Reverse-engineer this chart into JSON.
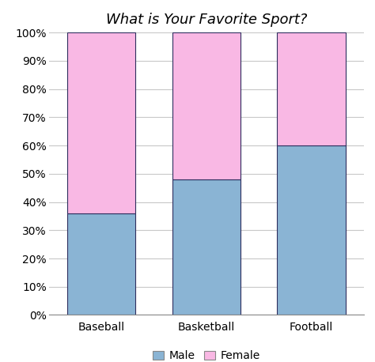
{
  "title": "What is Your Favorite Sport?",
  "categories": [
    "Baseball",
    "Basketball",
    "Football"
  ],
  "male_values": [
    0.36,
    0.48,
    0.6
  ],
  "female_values": [
    0.64,
    0.52,
    0.4
  ],
  "male_color": "#8ab4d4",
  "female_color": "#f9b8e4",
  "bar_edge_color": "#2f2f5f",
  "bar_width": 0.65,
  "ylim": [
    0,
    1.0
  ],
  "ytick_labels": [
    "0%",
    "10%",
    "20%",
    "30%",
    "40%",
    "50%",
    "60%",
    "70%",
    "80%",
    "90%",
    "100%"
  ],
  "ytick_values": [
    0.0,
    0.1,
    0.2,
    0.3,
    0.4,
    0.5,
    0.6,
    0.7,
    0.8,
    0.9,
    1.0
  ],
  "legend_labels": [
    "Male",
    "Female"
  ],
  "title_fontsize": 13,
  "tick_fontsize": 10,
  "legend_fontsize": 10,
  "background_color": "#ffffff",
  "grid_color": "#c8c8c8"
}
